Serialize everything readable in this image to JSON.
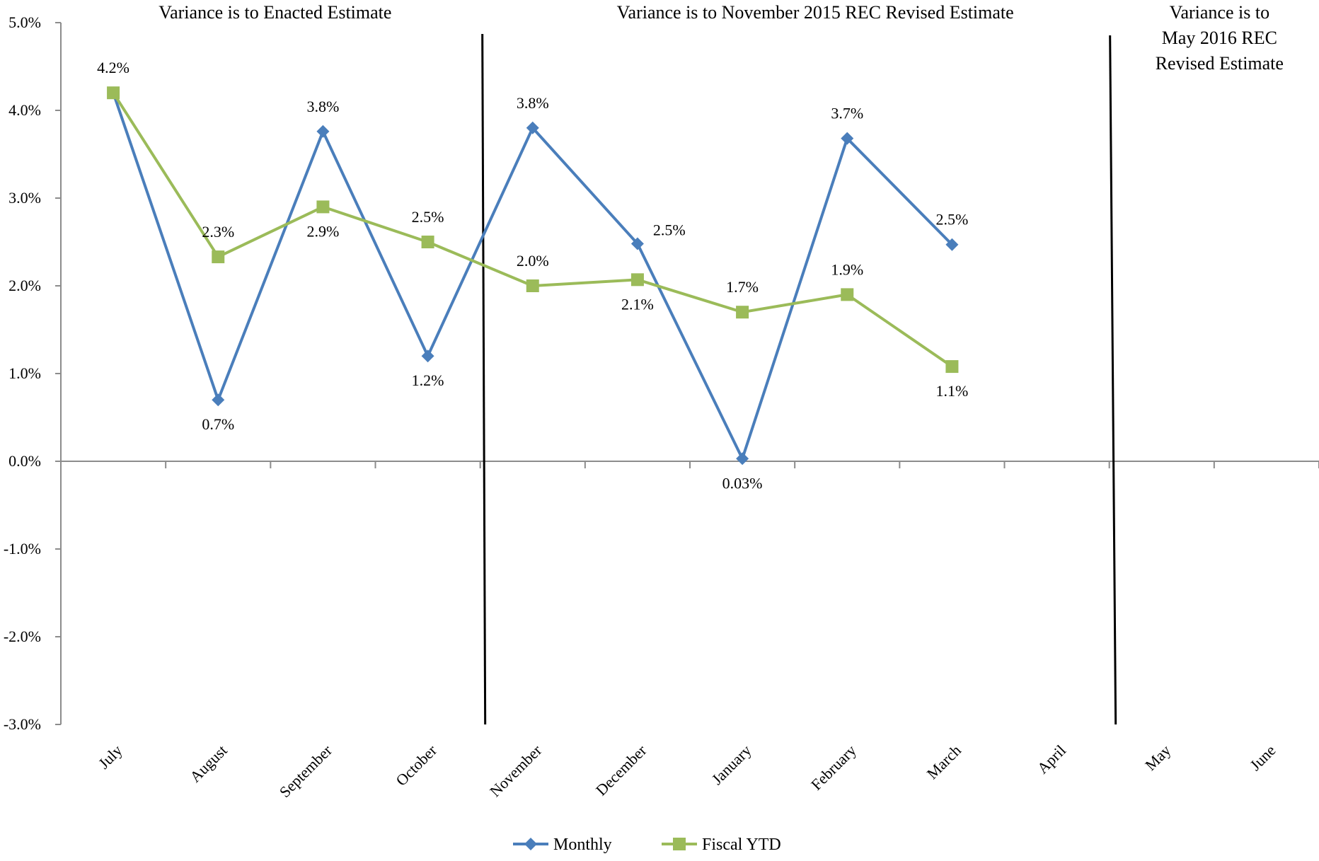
{
  "chart_data": {
    "type": "line",
    "title": "",
    "xlabel": "",
    "ylabel": "",
    "categories": [
      "July",
      "August",
      "September",
      "October",
      "November",
      "December",
      "January",
      "February",
      "March",
      "April",
      "May",
      "June"
    ],
    "ylim": [
      -3.0,
      5.0
    ],
    "yticks": [
      5.0,
      4.0,
      3.0,
      2.0,
      1.0,
      0.0,
      -1.0,
      -2.0,
      -3.0
    ],
    "ytick_labels": [
      "5.0%",
      "4.0%",
      "3.0%",
      "2.0%",
      "1.0%",
      "0.0%",
      "-1.0%",
      "-2.0%",
      "-3.0%"
    ],
    "grid": false,
    "legend_position": "bottom",
    "series": [
      {
        "name": "Monthly",
        "color": "#4A7EBB",
        "marker": "diamond",
        "values": [
          4.2,
          0.7,
          3.76,
          1.2,
          3.8,
          2.48,
          0.03,
          3.68,
          2.47,
          null,
          null,
          null
        ],
        "labels": [
          "",
          "0.7%",
          "3.8%",
          "1.2%",
          "3.8%",
          "2.5%",
          "0.03%",
          "3.7%",
          "2.5%",
          "",
          "",
          ""
        ],
        "label_pos": [
          "above",
          "below",
          "above",
          "below",
          "above",
          "right",
          "below",
          "above",
          "above",
          "",
          "",
          ""
        ]
      },
      {
        "name": "Fiscal YTD",
        "color": "#9BBB59",
        "marker": "square",
        "values": [
          4.2,
          2.33,
          2.9,
          2.5,
          2.0,
          2.07,
          1.7,
          1.9,
          1.08,
          null,
          null,
          null
        ],
        "labels": [
          "4.2%",
          "2.3%",
          "2.9%",
          "2.5%",
          "2.0%",
          "2.1%",
          "1.7%",
          "1.9%",
          "1.1%",
          "",
          "",
          ""
        ],
        "label_pos": [
          "above",
          "above",
          "below",
          "above",
          "above",
          "below",
          "above",
          "above",
          "below",
          "",
          "",
          ""
        ]
      }
    ],
    "regions": [
      {
        "text": [
          "Variance is to Enacted Estimate"
        ]
      },
      {
        "text": [
          "Variance is to November 2015 REC Revised Estimate"
        ]
      },
      {
        "text": [
          "Variance is to",
          "May 2016 REC",
          "Revised Estimate"
        ]
      }
    ]
  }
}
